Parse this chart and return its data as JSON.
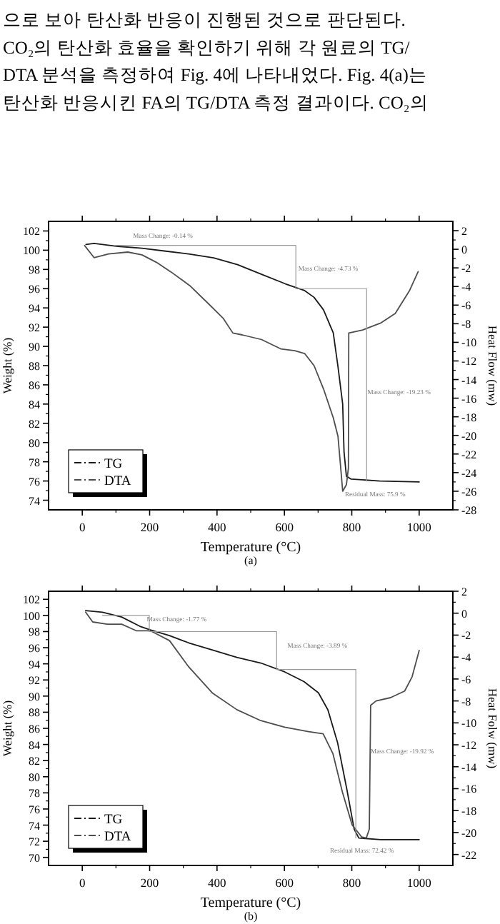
{
  "chart_data": [
    {
      "type": "line",
      "xlabel": "Temperature (°C)",
      "ylabel": "Weight (%)",
      "y2label": "Heat Flow (mw)",
      "xlim": [
        -100,
        1100
      ],
      "xticks": [
        0,
        200,
        400,
        600,
        800,
        1000
      ],
      "ylim": [
        73,
        103
      ],
      "yticks": [
        74,
        76,
        78,
        80,
        82,
        84,
        86,
        88,
        90,
        92,
        94,
        96,
        98,
        100,
        102
      ],
      "y2lim": [
        -28,
        3
      ],
      "y2ticks": [
        -28,
        -26,
        -24,
        -22,
        -20,
        -18,
        -16,
        -14,
        -12,
        -10,
        -8,
        -6,
        -4,
        -2,
        0,
        2
      ],
      "legend": "bottom left",
      "series": [
        {
          "name": "TG",
          "color": "#1a1a1a",
          "x": [
            11,
            35,
            106,
            177,
            248,
            319,
            390,
            461,
            532,
            603,
            660,
            688,
            716,
            745,
            759,
            773,
            777,
            784,
            798,
            883,
            1000
          ],
          "values": [
            100.6,
            100.7,
            100.4,
            100.2,
            99.9,
            99.6,
            99.2,
            98.5,
            97.5,
            96.5,
            95.8,
            95.1,
            93.8,
            91.4,
            87.9,
            84,
            79,
            76.5,
            76.2,
            76.0,
            75.9
          ]
        },
        {
          "name": "DTA",
          "color": "#4d4d4d",
          "axis": "y2",
          "x": [
            7,
            35,
            78,
            135,
            177,
            220,
            262,
            319,
            376,
            418,
            447,
            475,
            532,
            589,
            631,
            660,
            688,
            716,
            745,
            759,
            766,
            773,
            784,
            790,
            791,
            830,
            887,
            929,
            972,
            997
          ],
          "values": [
            0.4,
            -0.9,
            -0.5,
            -0.3,
            -0.6,
            -1.4,
            -2.4,
            -3.9,
            -5.9,
            -7.4,
            -9.0,
            -9.2,
            -9.7,
            -10.7,
            -10.9,
            -11.2,
            -12.5,
            -15.0,
            -18.1,
            -20.1,
            -23.0,
            -26.0,
            -25.3,
            -23.5,
            -9.0,
            -8.7,
            -7.9,
            -6.9,
            -4.4,
            -2.4
          ]
        },
        {
          "color": "#999999",
          "x": [
            100,
            634,
            634,
            844,
            844
          ],
          "values": [
            100.5,
            100.5,
            96,
            96,
            76
          ]
        }
      ],
      "annotations": [
        "으로 보아 탄산화 반응이 진행된 것으로 판단된다.",
        "CO₂의 탄산화 효율을 확인하기 위해 각 원료의 TG/",
        "DTA 분석을 측정하여 Fig. 4에 나타내었다. Fig. 4(a)는",
        "탄산화 반응시킨 FA의 TG/DTA 측정 결과이다. CO₂의",
        "Mass Change: -0.14 %",
        "Mass Change: -4.73 %",
        "Mass Change: -19.23 %",
        "Residual Mass: 75.9 %",
        "(a)"
      ]
    },
    {
      "type": "line",
      "xlabel": "Temperature (°C)",
      "ylabel": "Weight (%)",
      "y2label": "Heat Folw (mw)",
      "xlim": [
        -100,
        1100
      ],
      "xticks": [
        0,
        200,
        400,
        600,
        800,
        1000
      ],
      "ylim": [
        69,
        103
      ],
      "yticks": [
        70,
        72,
        74,
        76,
        78,
        80,
        82,
        84,
        86,
        88,
        90,
        92,
        94,
        96,
        98,
        100,
        102
      ],
      "y2lim": [
        -23,
        2
      ],
      "y2ticks": [
        -22,
        -20,
        -18,
        -16,
        -14,
        -12,
        -10,
        -8,
        -6,
        -4,
        -2,
        0,
        2
      ],
      "legend": "bottom left",
      "series": [
        {
          "name": "TG",
          "color": "#1a1a1a",
          "x": [
            10,
            60,
            117,
            174,
            202,
            259,
            316,
            387,
            459,
            530,
            601,
            658,
            701,
            729,
            758,
            786,
            807,
            821,
            886,
            1000
          ],
          "values": [
            100.6,
            100.4,
            99.8,
            98.6,
            98.2,
            97.5,
            96.6,
            95.7,
            94.8,
            94.1,
            93.0,
            91.8,
            90.4,
            88.3,
            84.2,
            78.3,
            73.5,
            72.4,
            72.2,
            72.2
          ]
        },
        {
          "name": "DTA",
          "color": "#4d4d4d",
          "axis": "y2",
          "x": [
            10,
            31,
            74,
            117,
            160,
            202,
            259,
            316,
            387,
            459,
            530,
            601,
            672,
            715,
            744,
            772,
            801,
            829,
            843,
            852,
            856,
            872,
            915,
            957,
            979,
            1000
          ],
          "values": [
            0.1,
            -0.8,
            -1.0,
            -1.0,
            -1.6,
            -1.6,
            -2.5,
            -4.9,
            -7.3,
            -8.8,
            -9.8,
            -10.4,
            -10.8,
            -11.0,
            -12.8,
            -16.3,
            -19.3,
            -20.4,
            -20.5,
            -19.7,
            -8.4,
            -8.0,
            -7.7,
            -7.1,
            -5.8,
            -3.4
          ]
        },
        {
          "color": "#999999",
          "x": [
            60,
            199,
            199,
            577,
            577,
            812,
            812
          ],
          "values": [
            100,
            100,
            98,
            98,
            93.3,
            93.3,
            72.4
          ]
        }
      ],
      "annotations": [
        "Mass Change: -1.77 %",
        "Mass Change: -3.89 %",
        "Mass Change: -19.92 %",
        "Residual Mass: 72.42 %",
        "(b)"
      ]
    }
  ]
}
